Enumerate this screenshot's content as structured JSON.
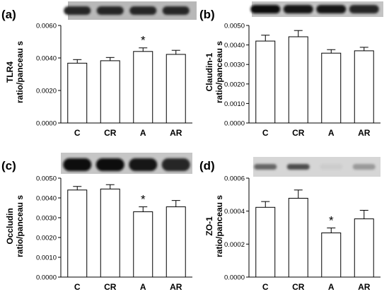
{
  "chart_data": [
    {
      "type": "bar",
      "panel_label": "(a)",
      "ylabel_lines": [
        "TLR4",
        "ratio/panceau s"
      ],
      "categories": [
        "C",
        "CR",
        "A",
        "AR"
      ],
      "values": [
        0.00368,
        0.00383,
        0.0044,
        0.00422
      ],
      "errors": [
        0.00022,
        0.0002,
        0.00022,
        0.00025
      ],
      "significance": [
        "",
        "",
        "*",
        ""
      ],
      "yticks": [
        "0.0000",
        "0.0020",
        "0.0040",
        "0.0060"
      ],
      "ylim": [
        0,
        0.006
      ],
      "blot_band_darkness": [
        0.85,
        0.85,
        0.85,
        0.85
      ]
    },
    {
      "type": "bar",
      "panel_label": "(b)",
      "ylabel_lines": [
        "Claudin-1",
        "ratio/panceau s"
      ],
      "categories": [
        "C",
        "CR",
        "A",
        "AR"
      ],
      "values": [
        0.0042,
        0.00442,
        0.00358,
        0.0037
      ],
      "errors": [
        0.0003,
        0.00032,
        0.00018,
        0.00018
      ],
      "significance": [
        "",
        "",
        "",
        ""
      ],
      "yticks": [
        "0.0000",
        "0.0010",
        "0.0020",
        "0.0030",
        "0.0040",
        "0.0050"
      ],
      "ylim": [
        0,
        0.005
      ],
      "blot_band_darkness": [
        0.95,
        0.9,
        0.9,
        0.85
      ]
    },
    {
      "type": "bar",
      "panel_label": "(c)",
      "ylabel_lines": [
        "Occludin",
        "ratio/panceau s"
      ],
      "categories": [
        "C",
        "CR",
        "A",
        "AR"
      ],
      "values": [
        0.0044,
        0.00445,
        0.0033,
        0.00355
      ],
      "errors": [
        0.00018,
        0.00022,
        0.00025,
        0.00032
      ],
      "significance": [
        "",
        "",
        "*",
        ""
      ],
      "yticks": [
        "0.0000",
        "0.0010",
        "0.0020",
        "0.0030",
        "0.0040",
        "0.0050"
      ],
      "ylim": [
        0,
        0.005
      ],
      "blot_band_darkness": [
        0.95,
        0.95,
        0.9,
        0.85
      ]
    },
    {
      "type": "bar",
      "panel_label": "(d)",
      "ylabel_lines": [
        "ZO-1",
        "ratio/panceau s"
      ],
      "categories": [
        "C",
        "CR",
        "A",
        "AR"
      ],
      "values": [
        0.000423,
        0.000478,
        0.000268,
        0.000353
      ],
      "errors": [
        3.5e-05,
        5e-05,
        3e-05,
        5.2e-05
      ],
      "significance": [
        "",
        "",
        "*",
        ""
      ],
      "yticks": [
        "0.0000",
        "0.0002",
        "0.0004",
        "0.0006"
      ],
      "ylim": [
        0,
        0.0006
      ],
      "blot_band_darkness": [
        0.6,
        0.7,
        0.2,
        0.4
      ]
    }
  ]
}
